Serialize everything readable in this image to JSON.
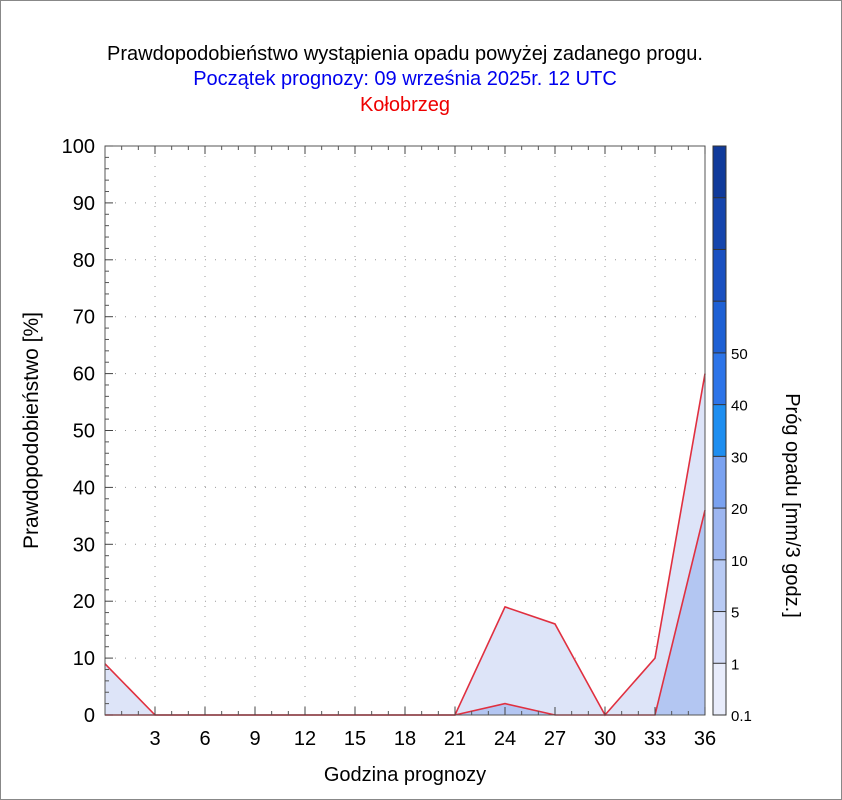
{
  "title": "Prawdopodobieństwo wystąpienia opadu powyżej zadanego progu.",
  "subtitle": "Początek prognozy: 09 września 2025r. 12 UTC",
  "location": "Kołobrzeg",
  "chart_data": {
    "type": "area",
    "xlabel": "Godzina prognozy",
    "ylabel": "Prawdopodobieństwo [%]",
    "xlim": [
      0,
      36
    ],
    "ylim": [
      0,
      100
    ],
    "xticks": [
      3,
      6,
      9,
      12,
      15,
      18,
      21,
      24,
      27,
      30,
      33,
      36
    ],
    "yticks": [
      0,
      10,
      20,
      30,
      40,
      50,
      60,
      70,
      80,
      90,
      100
    ],
    "grid": true,
    "x": [
      0,
      3,
      6,
      9,
      12,
      15,
      18,
      21,
      24,
      27,
      30,
      33,
      36
    ],
    "series": [
      {
        "name": "0.1",
        "color": "#dde4f8",
        "values": [
          9,
          0,
          0,
          0,
          0,
          0,
          0,
          0,
          19,
          16,
          0,
          10,
          60
        ]
      },
      {
        "name": "1",
        "color": "#b3c6f2",
        "values": [
          0,
          0,
          0,
          0,
          0,
          0,
          0,
          0,
          2,
          0,
          0,
          0,
          36
        ]
      }
    ],
    "colorbar": {
      "label": "Próg opadu [mm/3 godz.]",
      "labels": [
        "0.1",
        "1",
        "5",
        "10",
        "20",
        "30",
        "40",
        "50"
      ],
      "colors": [
        "#e8ecfb",
        "#d4ddf7",
        "#b8caf3",
        "#9db6f0",
        "#7aa2f0",
        "#1e8ef0",
        "#2c74e8",
        "#1e60d4",
        "#1a50c0",
        "#1545ad",
        "#103a9a"
      ]
    }
  }
}
